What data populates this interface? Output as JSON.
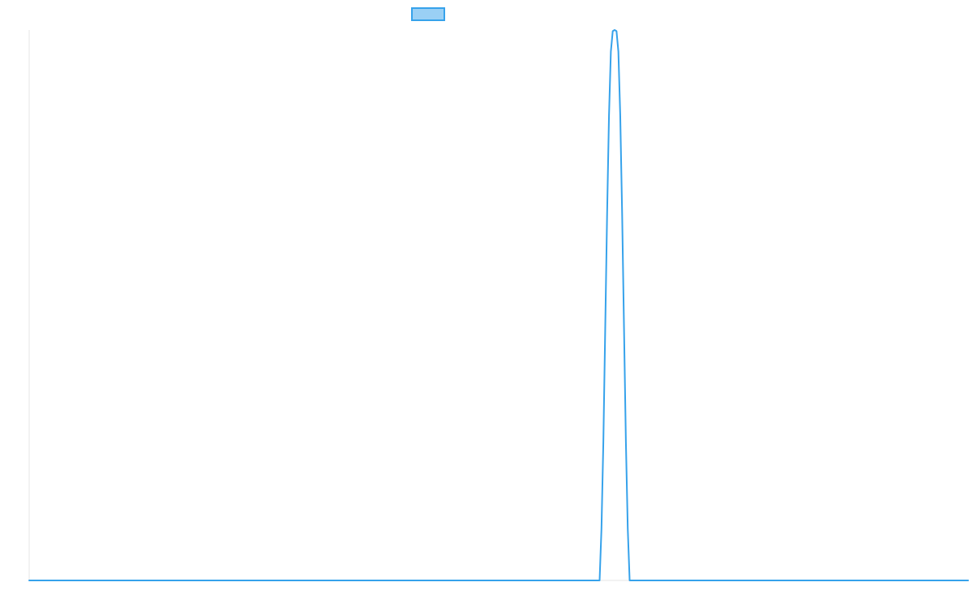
{
  "chart_data": {
    "type": "line",
    "title": "",
    "xlabel": "",
    "ylabel": "",
    "ylim": [
      0,
      1
    ],
    "grid": false,
    "legend": {
      "placement": "top-center"
    },
    "series": [
      {
        "color": "#36a2eb",
        "legend_fill": "#9ad0f5",
        "x": [
          0,
          0.6075,
          0.6095,
          0.6115,
          0.6135,
          0.6155,
          0.6175,
          0.6195,
          0.6215,
          0.6235,
          0.6255,
          0.6275,
          0.6295,
          0.6315,
          0.6335,
          0.6355,
          0.6375,
          0.6395,
          0.6415,
          0.6435,
          0.6455,
          0.6475,
          1
        ],
        "y": [
          0,
          0,
          0.094,
          0.252,
          0.458,
          0.666,
          0.844,
          0.961,
          0.998,
          1.0,
          0.998,
          0.961,
          0.844,
          0.666,
          0.458,
          0.252,
          0.094,
          0,
          0,
          0,
          0,
          0,
          0
        ]
      }
    ]
  }
}
